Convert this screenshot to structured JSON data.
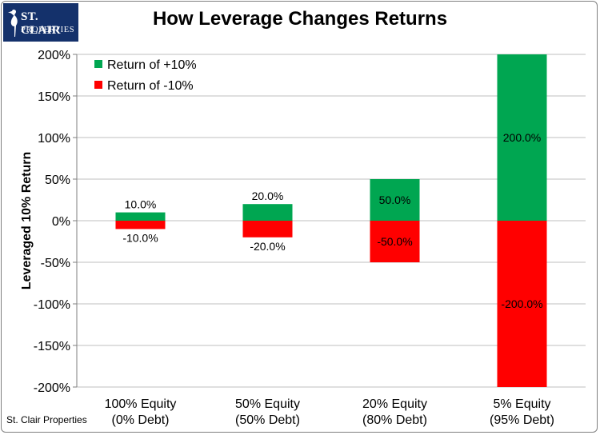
{
  "logo": {
    "line1": "ST. CLAIR",
    "line2": "PROPERTIES"
  },
  "footer": {
    "source": "St. Clair Properties"
  },
  "colors": {
    "positive": "#00a651",
    "negative": "#ff0000",
    "grid": "#bfbfbf",
    "logo_bg": "#14316b"
  },
  "chart_data": {
    "type": "bar",
    "title": "How Leverage Changes Returns",
    "ylabel": "Leveraged 10% Return",
    "xlabel": "",
    "ylim": [
      -200,
      200
    ],
    "ytick_step": 50,
    "y_unit": "%",
    "stacked": true,
    "grid": "horizontal",
    "legend_position": "top-left",
    "categories": [
      [
        "100% Equity",
        "(0% Debt)"
      ],
      [
        "50% Equity",
        "(50% Debt)"
      ],
      [
        "20% Equity",
        "(80% Debt)"
      ],
      [
        "5% Equity",
        "(95% Debt)"
      ]
    ],
    "series": [
      {
        "name": "Return of +10%",
        "color": "#00a651",
        "values": [
          10,
          20,
          50,
          200
        ],
        "labels": [
          "10.0%",
          "20.0%",
          "50.0%",
          "200.0%"
        ]
      },
      {
        "name": "Return of -10%",
        "color": "#ff0000",
        "values": [
          -10,
          -20,
          -50,
          -200
        ],
        "labels": [
          "-10.0%",
          "-20.0%",
          "-50.0%",
          "-200.0%"
        ]
      }
    ]
  }
}
